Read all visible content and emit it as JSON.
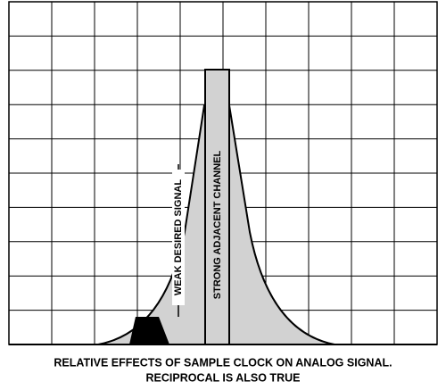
{
  "diagram": {
    "labels": {
      "weak_signal": "WEAK DESIRED SIGNAL",
      "strong_channel": "STRONG ADJACENT CHANNEL"
    },
    "caption": {
      "line1": "RELATIVE EFFECTS OF SAMPLE CLOCK ON ANALOG SIGNAL.",
      "line2": "RECIPROCAL IS ALSO TRUE"
    }
  }
}
